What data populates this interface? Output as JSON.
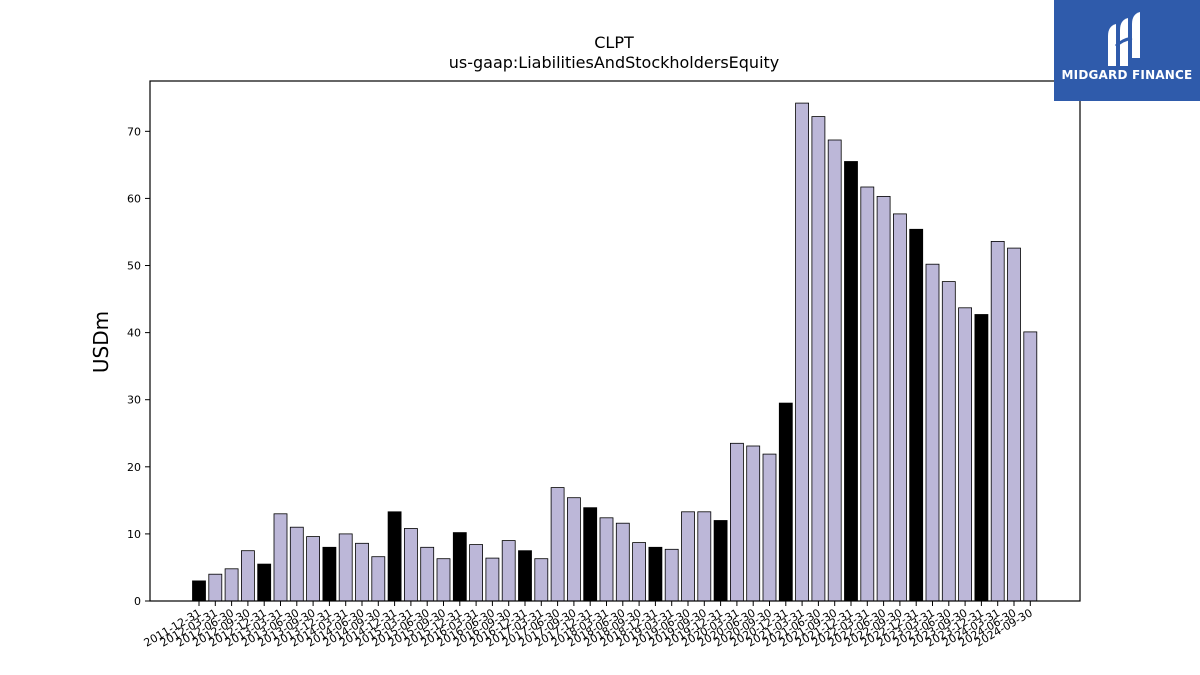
{
  "chart_data": {
    "type": "bar",
    "title": "CLPT",
    "subtitle": "us-gaap:LiabilitiesAndStockholdersEquity",
    "xlabel": "",
    "ylabel": "USDm",
    "ylim": [
      0,
      77.5
    ],
    "yticks": [
      0,
      10,
      20,
      30,
      40,
      50,
      60,
      70
    ],
    "grid": false,
    "categories": [
      "2011-12-31",
      "2012-03-31",
      "2012-06-30",
      "2012-09-30",
      "2012-12-31",
      "2013-03-31",
      "2013-06-30",
      "2013-09-30",
      "2013-12-31",
      "2014-03-31",
      "2014-06-30",
      "2014-09-30",
      "2014-12-31",
      "2015-03-31",
      "2015-06-30",
      "2015-09-30",
      "2015-12-31",
      "2016-03-31",
      "2016-06-30",
      "2016-09-30",
      "2016-12-31",
      "2017-03-31",
      "2017-06-30",
      "2017-09-30",
      "2017-12-31",
      "2018-03-31",
      "2018-06-30",
      "2018-09-30",
      "2018-12-31",
      "2019-03-31",
      "2019-06-30",
      "2019-09-30",
      "2019-12-31",
      "2020-03-31",
      "2020-06-30",
      "2020-09-30",
      "2020-12-31",
      "2021-03-31",
      "2021-06-30",
      "2021-09-30",
      "2021-12-31",
      "2022-03-31",
      "2022-06-30",
      "2022-09-30",
      "2022-12-31",
      "2023-03-31",
      "2023-06-30",
      "2023-09-30",
      "2023-12-31",
      "2024-03-31",
      "2024-06-30",
      "2024-09-30"
    ],
    "values": [
      3.0,
      4.0,
      4.8,
      7.5,
      5.5,
      13.0,
      11.0,
      9.6,
      8.0,
      10.0,
      8.6,
      6.6,
      13.3,
      10.8,
      8.0,
      6.3,
      10.2,
      8.4,
      6.4,
      9.0,
      7.5,
      6.3,
      16.9,
      15.4,
      13.9,
      12.4,
      11.6,
      8.7,
      8.0,
      7.7,
      13.3,
      13.3,
      12.0,
      23.5,
      23.1,
      21.9,
      29.5,
      74.2,
      72.2,
      68.7,
      65.5,
      61.7,
      60.3,
      57.7,
      55.4,
      50.2,
      47.6,
      43.7,
      42.7,
      53.6,
      52.6,
      40.1
    ],
    "highlight": [
      true,
      false,
      false,
      false,
      true,
      false,
      false,
      false,
      true,
      false,
      false,
      false,
      true,
      false,
      false,
      false,
      true,
      false,
      false,
      false,
      true,
      false,
      false,
      false,
      true,
      false,
      false,
      false,
      true,
      false,
      false,
      false,
      true,
      false,
      false,
      false,
      true,
      false,
      false,
      false,
      true,
      false,
      false,
      false,
      true,
      false,
      false,
      false,
      true,
      false,
      false,
      false
    ],
    "colors": {
      "bar": "#bcb7d8",
      "highlight": "#000000",
      "edge": "#000000",
      "axis": "#000000"
    }
  },
  "logo": {
    "text": "MIDGARD FINANCE",
    "bg": "#2f5bab",
    "fg": "#ffffff"
  }
}
